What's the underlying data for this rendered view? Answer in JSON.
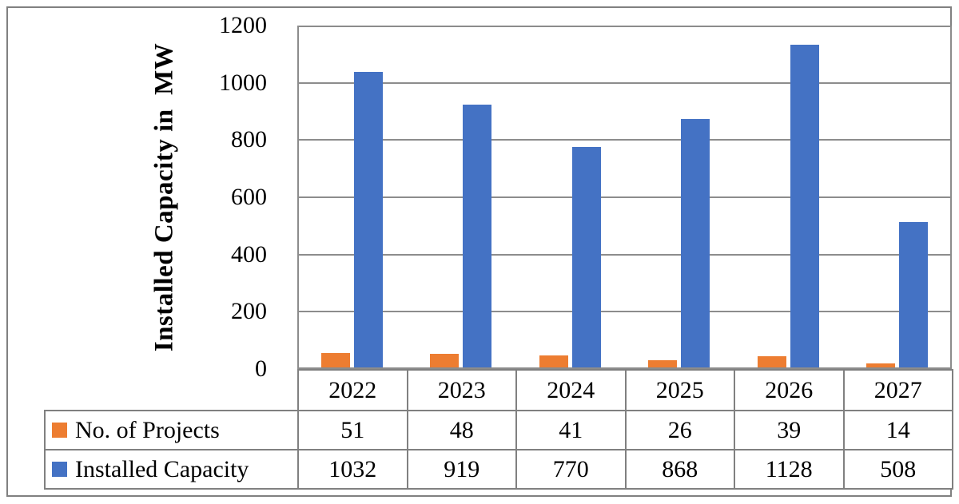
{
  "figure": {
    "background": "#ffffff",
    "border_color": "#808080"
  },
  "chart_data": {
    "type": "bar",
    "title": "",
    "xlabel": "",
    "ylabel": "Installed Capacity in  MW",
    "categories": [
      "2022",
      "2023",
      "2024",
      "2025",
      "2026",
      "2027"
    ],
    "series": [
      {
        "name": "No. of Projects",
        "color": "#ED7D31",
        "values": [
          51,
          48,
          41,
          26,
          39,
          14
        ]
      },
      {
        "name": "Installed Capacity",
        "color": "#4472C4",
        "values": [
          1032,
          919,
          770,
          868,
          1128,
          508
        ]
      }
    ],
    "ylim": [
      0,
      1200
    ],
    "yticks": [
      0,
      200,
      400,
      600,
      800,
      1000,
      1200
    ],
    "grid": true,
    "gridline_color": "#8C8C8C",
    "axis_line_color": "#8C8C8C",
    "table_border_color": "#808080",
    "legend_position": "data-table-left",
    "text_color": "#000000"
  }
}
